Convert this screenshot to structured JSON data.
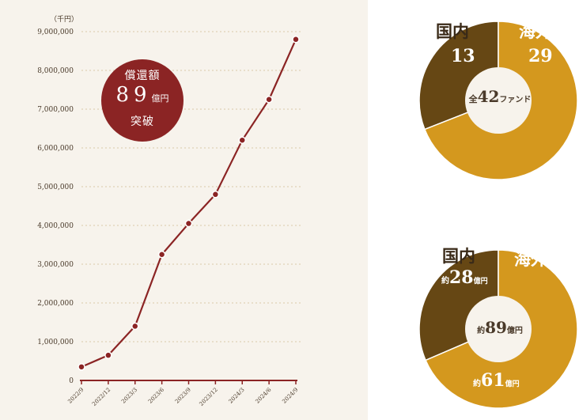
{
  "line_chart": {
    "unit_label": "（千円）",
    "badge": {
      "line1": "償還額",
      "number": "89",
      "unit": "億円",
      "line3": "突破"
    }
  },
  "pie_funds": {
    "domestic_label": "国内",
    "domestic_value": "13",
    "overseas_label": "海外",
    "overseas_value": "29",
    "center_prefix": "全",
    "center_value": "42",
    "center_suffix": "ファンド"
  },
  "pie_amount": {
    "domestic_label": "国内",
    "domestic_prefix": "約",
    "domestic_value": "28",
    "domestic_suffix": "億円",
    "overseas_label": "海外",
    "center_prefix": "約",
    "center_value": "89",
    "center_suffix": "億円",
    "overseas_prefix": "約",
    "overseas_value": "61",
    "overseas_suffix": "億円"
  },
  "colors": {
    "line": "#8b2424",
    "domestic": "#664714",
    "overseas": "#d4981e",
    "badge": "#8b2424",
    "panel": "#f7f3ec"
  },
  "chart_data": [
    {
      "type": "line",
      "x": [
        "2022/9",
        "2022/12",
        "2023/3",
        "2023/6",
        "2023/9",
        "2023/12",
        "2024/3",
        "2024/6",
        "2024/9"
      ],
      "y_tick_labels": [
        "0",
        "1,000,000",
        "2,000,000",
        "3,000,000",
        "4,000,000",
        "5,000,000",
        "6,000,000",
        "7,000,000",
        "8,000,000",
        "9,000,000"
      ],
      "series": [
        {
          "values": [
            350000,
            650000,
            1400000,
            3250000,
            4050000,
            4800000,
            6200000,
            7250000,
            8800000
          ]
        }
      ],
      "ylim": [
        0,
        9000000
      ],
      "grid": true
    },
    {
      "type": "pie",
      "categories": [
        "国内",
        "海外"
      ],
      "values": [
        13,
        29
      ]
    },
    {
      "type": "pie",
      "categories": [
        "国内",
        "海外"
      ],
      "values": [
        28,
        61
      ]
    }
  ]
}
